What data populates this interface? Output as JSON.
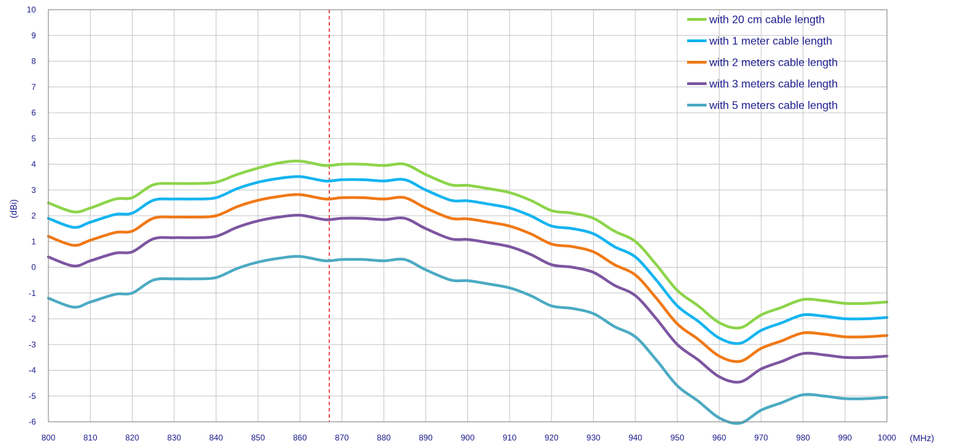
{
  "chart_data": {
    "type": "line",
    "title": "",
    "xlabel": "(MHz)",
    "ylabel": "(dBi)",
    "xlim": [
      800,
      1000
    ],
    "ylim": [
      -6,
      10
    ],
    "x_ticks": [
      "800",
      "810",
      "820",
      "830",
      "840",
      "850",
      "860",
      "870",
      "880",
      "890",
      "900",
      "910",
      "920",
      "930",
      "940",
      "950",
      "960",
      "970",
      "980",
      "990",
      "1000"
    ],
    "y_ticks": [
      "10",
      "9",
      "8",
      "7",
      "6",
      "5",
      "4",
      "3",
      "2",
      "1",
      "0",
      "-1",
      "-2",
      "-3",
      "-4",
      "-5",
      "-6"
    ],
    "grid": true,
    "legend_position": "top-right",
    "marker_line": {
      "x": 867,
      "color": "#ee2222",
      "style": "dashed"
    },
    "x": [
      800,
      806,
      810,
      816,
      820,
      825,
      830,
      835,
      840,
      845,
      850,
      855,
      860,
      866,
      870,
      875,
      880,
      885,
      890,
      896,
      900,
      905,
      910,
      915,
      920,
      925,
      930,
      935,
      940,
      945,
      950,
      955,
      960,
      965,
      970,
      975,
      980,
      985,
      990,
      995,
      1000
    ],
    "series": [
      {
        "name": "with 20 cm cable length",
        "color": "#8cd44a",
        "values": [
          2.5,
          2.15,
          2.3,
          2.65,
          2.7,
          3.2,
          3.25,
          3.25,
          3.3,
          3.6,
          3.85,
          4.05,
          4.12,
          3.95,
          4.0,
          4.0,
          3.95,
          4.0,
          3.6,
          3.2,
          3.18,
          3.05,
          2.9,
          2.6,
          2.2,
          2.1,
          1.9,
          1.4,
          1.0,
          0.1,
          -0.9,
          -1.5,
          -2.15,
          -2.35,
          -1.85,
          -1.55,
          -1.25,
          -1.3,
          -1.4,
          -1.4,
          -1.35
        ]
      },
      {
        "name": "with 1 meter cable length",
        "color": "#14b4f0",
        "values": [
          1.9,
          1.55,
          1.75,
          2.05,
          2.1,
          2.6,
          2.65,
          2.65,
          2.7,
          3.05,
          3.3,
          3.45,
          3.52,
          3.35,
          3.4,
          3.4,
          3.35,
          3.4,
          3.0,
          2.6,
          2.58,
          2.45,
          2.3,
          2.0,
          1.6,
          1.5,
          1.3,
          0.8,
          0.4,
          -0.5,
          -1.5,
          -2.1,
          -2.75,
          -2.95,
          -2.45,
          -2.15,
          -1.85,
          -1.9,
          -2.0,
          -2.0,
          -1.95
        ]
      },
      {
        "name": "with 2 meters cable length",
        "color": "#f07814",
        "values": [
          1.2,
          0.85,
          1.05,
          1.35,
          1.4,
          1.9,
          1.95,
          1.95,
          2.0,
          2.35,
          2.6,
          2.75,
          2.82,
          2.65,
          2.7,
          2.7,
          2.65,
          2.7,
          2.3,
          1.9,
          1.88,
          1.75,
          1.6,
          1.3,
          0.9,
          0.8,
          0.6,
          0.1,
          -0.3,
          -1.2,
          -2.2,
          -2.8,
          -3.45,
          -3.65,
          -3.15,
          -2.85,
          -2.55,
          -2.6,
          -2.7,
          -2.7,
          -2.65
        ]
      },
      {
        "name": "with 3 meters cable length",
        "color": "#7d55a0",
        "values": [
          0.4,
          0.05,
          0.25,
          0.55,
          0.6,
          1.1,
          1.15,
          1.15,
          1.2,
          1.55,
          1.8,
          1.95,
          2.02,
          1.85,
          1.9,
          1.9,
          1.85,
          1.9,
          1.5,
          1.1,
          1.08,
          0.95,
          0.8,
          0.5,
          0.1,
          0.0,
          -0.2,
          -0.7,
          -1.1,
          -2.0,
          -3.0,
          -3.6,
          -4.25,
          -4.45,
          -3.95,
          -3.65,
          -3.35,
          -3.4,
          -3.5,
          -3.5,
          -3.45
        ]
      },
      {
        "name": "with 5 meters cable length",
        "color": "#4baac3",
        "values": [
          -1.2,
          -1.55,
          -1.35,
          -1.05,
          -1.0,
          -0.5,
          -0.45,
          -0.45,
          -0.4,
          -0.05,
          0.2,
          0.35,
          0.42,
          0.25,
          0.3,
          0.3,
          0.25,
          0.3,
          -0.1,
          -0.5,
          -0.52,
          -0.65,
          -0.8,
          -1.1,
          -1.5,
          -1.6,
          -1.8,
          -2.3,
          -2.7,
          -3.6,
          -4.6,
          -5.2,
          -5.85,
          -6.05,
          -5.55,
          -5.25,
          -4.95,
          -5.0,
          -5.1,
          -5.1,
          -5.05
        ]
      }
    ]
  }
}
